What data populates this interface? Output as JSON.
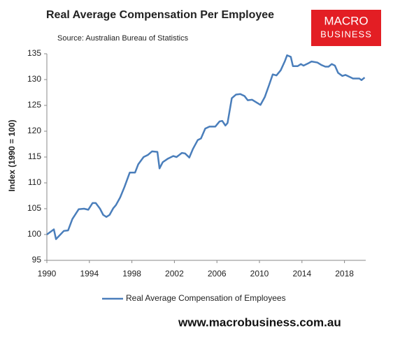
{
  "chart_data": {
    "type": "line",
    "title": "Real Average Compensation Per Employee",
    "subtitle": "Source: Australian Bureau of Statistics",
    "y_label": "Index (1990 = 100)",
    "logo": [
      "MACRO",
      "BUSINESS"
    ],
    "footer": "www.macrobusiness.com.au",
    "x": [
      1990,
      1990.66,
      1990.86,
      1991.6,
      1992.0,
      1992.4,
      1993.0,
      1993.5,
      1993.9,
      1994.3,
      1994.6,
      1995.0,
      1995.3,
      1995.6,
      1995.9,
      1996.25,
      1996.5,
      1996.9,
      1997.3,
      1997.8,
      1998.3,
      1998.6,
      1999.1,
      1999.5,
      1999.9,
      2000.4,
      2000.6,
      2000.9,
      2001.4,
      2001.9,
      2002.2,
      2002.7,
      2003.0,
      2003.4,
      2003.75,
      2004.2,
      2004.5,
      2004.9,
      2005.3,
      2005.85,
      2006.25,
      2006.5,
      2006.8,
      2007.0,
      2007.4,
      2007.8,
      2008.2,
      2008.6,
      2008.9,
      2009.3,
      2009.7,
      2010.1,
      2010.5,
      2010.9,
      2011.25,
      2011.6,
      2012.0,
      2012.4,
      2012.6,
      2012.95,
      2013.15,
      2013.6,
      2013.9,
      2014.15,
      2014.55,
      2014.9,
      2015.45,
      2015.85,
      2016.2,
      2016.5,
      2016.8,
      2017.1,
      2017.4,
      2017.8,
      2018.1,
      2018.5,
      2018.8,
      2019.1,
      2019.4,
      2019.6,
      2019.9
    ],
    "series": [
      {
        "name": "Real Average Compensation of Employees",
        "color": "#4a7ebb",
        "values": [
          100.0,
          101.0,
          99.1,
          100.7,
          100.8,
          103.0,
          104.9,
          105.0,
          104.8,
          106.1,
          106.1,
          105.0,
          103.8,
          103.4,
          103.8,
          105.1,
          105.7,
          107.2,
          109.2,
          112.0,
          112.0,
          113.6,
          115.0,
          115.4,
          116.1,
          116.0,
          112.8,
          114.0,
          114.7,
          115.2,
          115.0,
          115.8,
          115.7,
          114.9,
          116.6,
          118.3,
          118.6,
          120.5,
          120.9,
          120.9,
          121.9,
          122.0,
          121.1,
          121.6,
          126.4,
          127.1,
          127.2,
          126.8,
          126.0,
          126.1,
          125.6,
          125.1,
          126.6,
          128.9,
          131.0,
          130.8,
          131.8,
          133.6,
          134.7,
          134.4,
          132.6,
          132.6,
          133.0,
          132.7,
          133.1,
          133.5,
          133.3,
          132.8,
          132.5,
          132.5,
          133.0,
          132.7,
          131.3,
          130.7,
          130.9,
          130.5,
          130.2,
          130.2,
          130.2,
          129.9,
          130.4
        ]
      }
    ],
    "xlim": [
      1990,
      2020
    ],
    "xticks": [
      1990,
      1994,
      1998,
      2002,
      2006,
      2010,
      2014,
      2018
    ],
    "ylim": [
      95,
      135
    ],
    "yticks": [
      95,
      100,
      105,
      110,
      115,
      120,
      125,
      130,
      135
    ],
    "grid": false,
    "legend": "bottom"
  }
}
